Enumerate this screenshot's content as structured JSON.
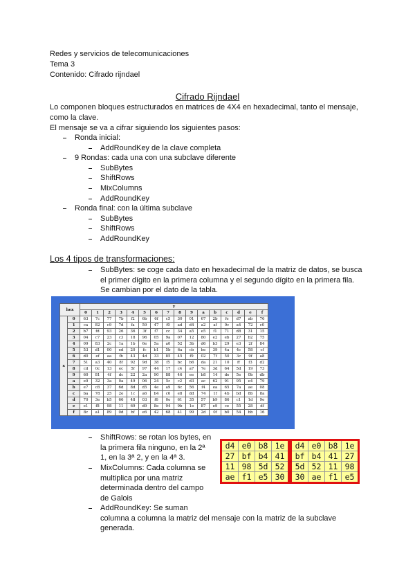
{
  "header": {
    "lines": [
      "Redes y servicios de telecomunicaciones",
      "Tema 3",
      "Contenido: Cifrado rijndael"
    ]
  },
  "title": "Cifrado Rijndael",
  "intro": [
    "Lo componen bloques estructurados en matrices de 4X4 en hexadecimal, tanto el mensaje,",
    "como la clave.",
    "El mensaje se va a cifrar siguiendo los siguientes pasos:"
  ],
  "steps": [
    {
      "label": "Ronda inicial:",
      "items": [
        "AddRoundKey de la clave completa"
      ]
    },
    {
      "label": "9 Rondas: cada una con una subclave diferente",
      "items": [
        "SubBytes",
        "ShiftRows",
        "MixColumns",
        "AddRoundKey"
      ]
    },
    {
      "label": "Ronda final: con la última subclave",
      "items": [
        "SubBytes",
        "ShiftRows",
        "AddRoundKey"
      ]
    }
  ],
  "section": {
    "heading": "Los 4 tipos de transformaciones:",
    "items": [
      {
        "lines": [
          "SubBytes: se coge cada dato en hexadecimal de la matriz de datos, se busca",
          "el primer dígito en la primera columna y el segundo dígito en la primera fila.",
          "Se cambian por el dato de la tabla."
        ]
      },
      {
        "lines": [
          "ShiftRows: se rotan los bytes, en",
          "la primera fila ninguno, en la 2ª",
          "1, en la 3ª 2, y en la 4ª 3."
        ]
      },
      {
        "lines": [
          "MixColumns: Cada columna se",
          "multiplica por una matriz",
          "determinada dentro del campo",
          "de Galois"
        ]
      },
      {
        "lines": [
          "AddRoundKey: Se suman",
          "columna a columna la matriz del mensaje con la matriz de la subclave",
          "generada."
        ]
      }
    ]
  },
  "sbox": {
    "corner": "hex",
    "y_label": "y",
    "x_label": "x",
    "columns": [
      "0",
      "1",
      "2",
      "3",
      "4",
      "5",
      "6",
      "7",
      "8",
      "9",
      "a",
      "b",
      "c",
      "d",
      "e",
      "f"
    ],
    "rows": [
      {
        "label": "0",
        "cells": [
          "63",
          "7c",
          "77",
          "7b",
          "f2",
          "6b",
          "6f",
          "c5",
          "30",
          "01",
          "67",
          "2b",
          "fe",
          "d7",
          "ab",
          "76"
        ]
      },
      {
        "label": "1",
        "cells": [
          "ca",
          "82",
          "c9",
          "7d",
          "fa",
          "59",
          "47",
          "f0",
          "ad",
          "d4",
          "a2",
          "af",
          "9c",
          "a4",
          "72",
          "c0"
        ]
      },
      {
        "label": "2",
        "cells": [
          "b7",
          "fd",
          "93",
          "26",
          "36",
          "3f",
          "f7",
          "cc",
          "34",
          "a5",
          "e5",
          "f1",
          "71",
          "d8",
          "31",
          "15"
        ]
      },
      {
        "label": "3",
        "cells": [
          "04",
          "c7",
          "23",
          "c3",
          "18",
          "96",
          "05",
          "9a",
          "07",
          "12",
          "80",
          "e2",
          "eb",
          "27",
          "b2",
          "75"
        ]
      },
      {
        "label": "4",
        "cells": [
          "09",
          "83",
          "2c",
          "1a",
          "1b",
          "6e",
          "5a",
          "a0",
          "52",
          "3b",
          "d6",
          "b3",
          "29",
          "e3",
          "2f",
          "84"
        ]
      },
      {
        "label": "5",
        "cells": [
          "53",
          "d1",
          "00",
          "ed",
          "20",
          "fc",
          "b1",
          "5b",
          "6a",
          "cb",
          "be",
          "39",
          "4a",
          "4c",
          "58",
          "cf"
        ]
      },
      {
        "label": "6",
        "cells": [
          "d0",
          "ef",
          "aa",
          "fb",
          "43",
          "4d",
          "33",
          "85",
          "45",
          "f9",
          "02",
          "7f",
          "50",
          "3c",
          "9f",
          "a8"
        ]
      },
      {
        "label": "7",
        "cells": [
          "51",
          "a3",
          "40",
          "8f",
          "92",
          "9d",
          "38",
          "f5",
          "bc",
          "b6",
          "da",
          "21",
          "10",
          "ff",
          "f3",
          "d2"
        ]
      },
      {
        "label": "8",
        "cells": [
          "cd",
          "0c",
          "13",
          "ec",
          "5f",
          "97",
          "44",
          "17",
          "c4",
          "a7",
          "7e",
          "3d",
          "64",
          "5d",
          "19",
          "73"
        ]
      },
      {
        "label": "9",
        "cells": [
          "60",
          "81",
          "4f",
          "dc",
          "22",
          "2a",
          "90",
          "88",
          "46",
          "ee",
          "b8",
          "14",
          "de",
          "5e",
          "0b",
          "db"
        ]
      },
      {
        "label": "a",
        "cells": [
          "e0",
          "32",
          "3a",
          "0a",
          "49",
          "06",
          "24",
          "5c",
          "c2",
          "d3",
          "ac",
          "62",
          "91",
          "95",
          "e4",
          "79"
        ]
      },
      {
        "label": "b",
        "cells": [
          "e7",
          "c8",
          "37",
          "6d",
          "8d",
          "d5",
          "4e",
          "a9",
          "6c",
          "56",
          "f4",
          "ea",
          "65",
          "7a",
          "ae",
          "08"
        ]
      },
      {
        "label": "c",
        "cells": [
          "ba",
          "78",
          "25",
          "2e",
          "1c",
          "a6",
          "b4",
          "c6",
          "e8",
          "dd",
          "74",
          "1f",
          "4b",
          "bd",
          "8b",
          "8a"
        ]
      },
      {
        "label": "d",
        "cells": [
          "70",
          "3e",
          "b5",
          "66",
          "48",
          "03",
          "f6",
          "0e",
          "61",
          "35",
          "57",
          "b9",
          "86",
          "c1",
          "1d",
          "9e"
        ]
      },
      {
        "label": "e",
        "cells": [
          "e1",
          "f8",
          "98",
          "11",
          "69",
          "d9",
          "8e",
          "94",
          "9b",
          "1e",
          "87",
          "e9",
          "ce",
          "55",
          "28",
          "df"
        ]
      },
      {
        "label": "f",
        "cells": [
          "8c",
          "a1",
          "89",
          "0d",
          "bf",
          "e6",
          "42",
          "68",
          "41",
          "99",
          "2d",
          "0f",
          "b0",
          "54",
          "bb",
          "16"
        ]
      }
    ]
  },
  "shift_rows_figure": {
    "before": [
      [
        "d4",
        "e0",
        "b8",
        "1e"
      ],
      [
        "27",
        "bf",
        "b4",
        "41"
      ],
      [
        "11",
        "98",
        "5d",
        "52"
      ],
      [
        "ae",
        "f1",
        "e5",
        "30"
      ]
    ],
    "after": [
      [
        "d4",
        "e0",
        "b8",
        "1e"
      ],
      [
        "bf",
        "b4",
        "41",
        "27"
      ],
      [
        "5d",
        "52",
        "11",
        "98"
      ],
      [
        "30",
        "ae",
        "f1",
        "e5"
      ]
    ]
  }
}
